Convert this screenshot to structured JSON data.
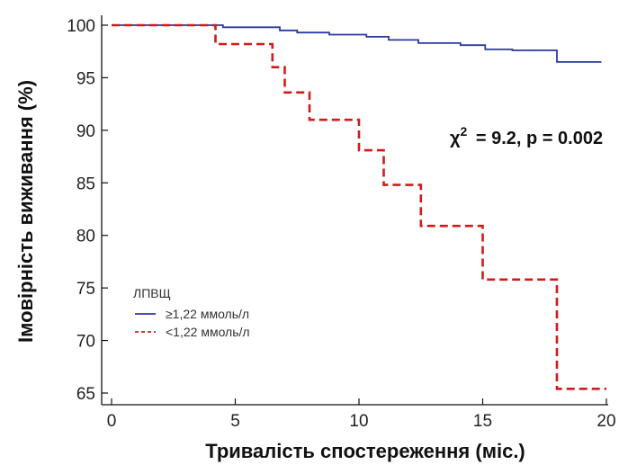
{
  "chart_data": {
    "type": "line",
    "xlabel": "Тривалість спостереження (міс.)",
    "ylabel": "Імовірність виживання (%)",
    "xlim": [
      0,
      20
    ],
    "ylim": [
      64,
      101
    ],
    "xticks": [
      0,
      5,
      10,
      15,
      20
    ],
    "yticks": [
      65,
      70,
      75,
      80,
      85,
      90,
      95,
      100
    ],
    "grid": false,
    "legend": {
      "title": "ЛПВЩ",
      "placement": "lower-left"
    },
    "annotation": {
      "chi": "χ",
      "sup": "2",
      "rest": " = 9.2, p = 0.002"
    },
    "series": [
      {
        "name": "≥1,22 ммоль/л",
        "color": "#2b3a9e",
        "style": "solid",
        "x": [
          0,
          4.5,
          6.8,
          7.5,
          8.8,
          10.3,
          11.2,
          12.4,
          14.1,
          15.1,
          16.2,
          18.0,
          19.8
        ],
        "y": [
          100,
          99.8,
          99.5,
          99.3,
          99.1,
          98.9,
          98.6,
          98.3,
          98.1,
          97.7,
          97.6,
          96.5,
          96.5
        ]
      },
      {
        "name": "<1,22 ммоль/л",
        "color": "#d11a1a",
        "style": "dashed",
        "x": [
          0,
          4.2,
          6.5,
          7.0,
          8.0,
          10.0,
          11.0,
          12.5,
          15.0,
          18.0,
          20.0
        ],
        "y": [
          100,
          98.2,
          96.0,
          93.6,
          91.0,
          88.1,
          84.8,
          80.9,
          75.8,
          65.4,
          65.4
        ]
      }
    ]
  }
}
